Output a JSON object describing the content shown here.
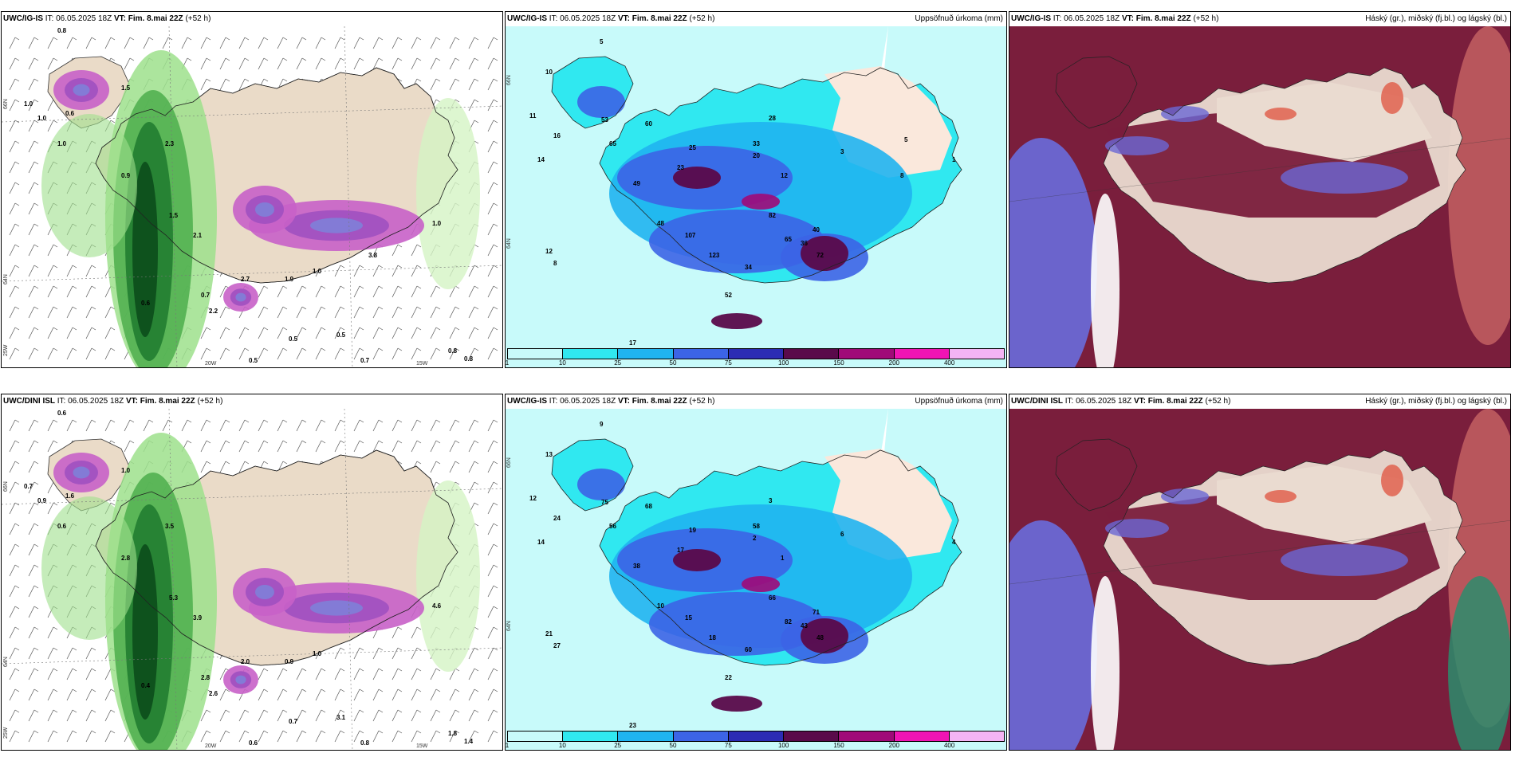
{
  "panels": [
    {
      "id": "p1",
      "model": "UWC/IG-IS",
      "it": "06.05.2025 18Z",
      "vt": "Fim. 8.mai 22Z",
      "lead": "(+52 h)",
      "right": "",
      "type": "wind"
    },
    {
      "id": "p2",
      "model": "UWC/IG-IS",
      "it": "06.05.2025 18Z",
      "vt": "Fim. 8.mai 22Z",
      "lead": "(+52 h)",
      "right": "Uppsöfnuð úrkoma (mm)",
      "type": "precip"
    },
    {
      "id": "p3",
      "model": "UWC/IG-IS",
      "it": "06.05.2025 18Z",
      "vt": "Fim. 8.mai 22Z",
      "lead": "(+52 h)",
      "right": "Háský (gr.), miðský (fj.bl.) og lágský (bl.)",
      "type": "cloud"
    },
    {
      "id": "p4",
      "model": "UWC/DINI ISL",
      "it": "06.05.2025 18Z",
      "vt": "Fim. 8.mai 22Z",
      "lead": "(+52 h)",
      "right": "",
      "type": "wind"
    },
    {
      "id": "p5",
      "model": "UWC/IG-IS",
      "it": "06.05.2025 18Z",
      "vt": "Fim. 8.mai 22Z",
      "lead": "(+52 h)",
      "right": "Uppsöfnuð úrkoma (mm)",
      "type": "precip"
    },
    {
      "id": "p6",
      "model": "UWC/DINI ISL",
      "it": "06.05.2025 18Z",
      "vt": "Fim. 8.mai 22Z",
      "lead": "(+52 h)",
      "right": "Háský (gr.), miðský (fj.bl.) og lágský (bl.)",
      "type": "cloud"
    }
  ],
  "labels": {
    "it": "IT:",
    "vt": "VT:"
  },
  "colorbar": {
    "ticks": [
      "1",
      "10",
      "25",
      "50",
      "75",
      "100",
      "150",
      "200",
      "400"
    ],
    "colors": [
      "#c8fafa",
      "#30e8f0",
      "#20b4f0",
      "#3c64e6",
      "#2c2cb4",
      "#5a0a4a",
      "#a00a78",
      "#f014b4",
      "#f4b4f4"
    ]
  },
  "axes": {
    "lat66": "66N",
    "lat64": "64N",
    "lon20": "20W",
    "lon15": "15W",
    "lon25": "25W"
  },
  "wind_values_top": [
    "0.8",
    "1.0",
    "1.0",
    "0.6",
    "1.0",
    "1.5",
    "0.9",
    "2.3",
    "1.5",
    "2.1",
    "0.6",
    "0.7",
    "2.7",
    "1.9",
    "1.0",
    "0.5",
    "0.5",
    "0.7",
    "2.2",
    "0.8",
    "0.8",
    "0.5",
    "1.0",
    "3.8"
  ],
  "wind_values_bottom": [
    "0.6",
    "0.7",
    "0.9",
    "1.6",
    "0.6",
    "1.0",
    "2.8",
    "3.5",
    "5.3",
    "3.9",
    "0.4",
    "2.8",
    "2.0",
    "0.9",
    "1.0",
    "3.1",
    "0.6",
    "0.8",
    "2.6",
    "1.8",
    "1.4",
    "0.7",
    "4.6"
  ],
  "precip_values_top": [
    "5",
    "10",
    "11",
    "16",
    "53",
    "65",
    "49",
    "60",
    "25",
    "23",
    "14",
    "12",
    "8",
    "17",
    "48",
    "107",
    "123",
    "52",
    "34",
    "82",
    "65",
    "72",
    "36",
    "40",
    "33",
    "28",
    "20",
    "12",
    "3",
    "1",
    "5",
    "8"
  ],
  "precip_values_bottom": [
    "9",
    "13",
    "12",
    "24",
    "75",
    "56",
    "38",
    "68",
    "19",
    "17",
    "14",
    "21",
    "27",
    "23",
    "10",
    "15",
    "18",
    "22",
    "60",
    "66",
    "82",
    "48",
    "43",
    "71",
    "58",
    "3",
    "2",
    "1",
    "6",
    "4"
  ]
}
